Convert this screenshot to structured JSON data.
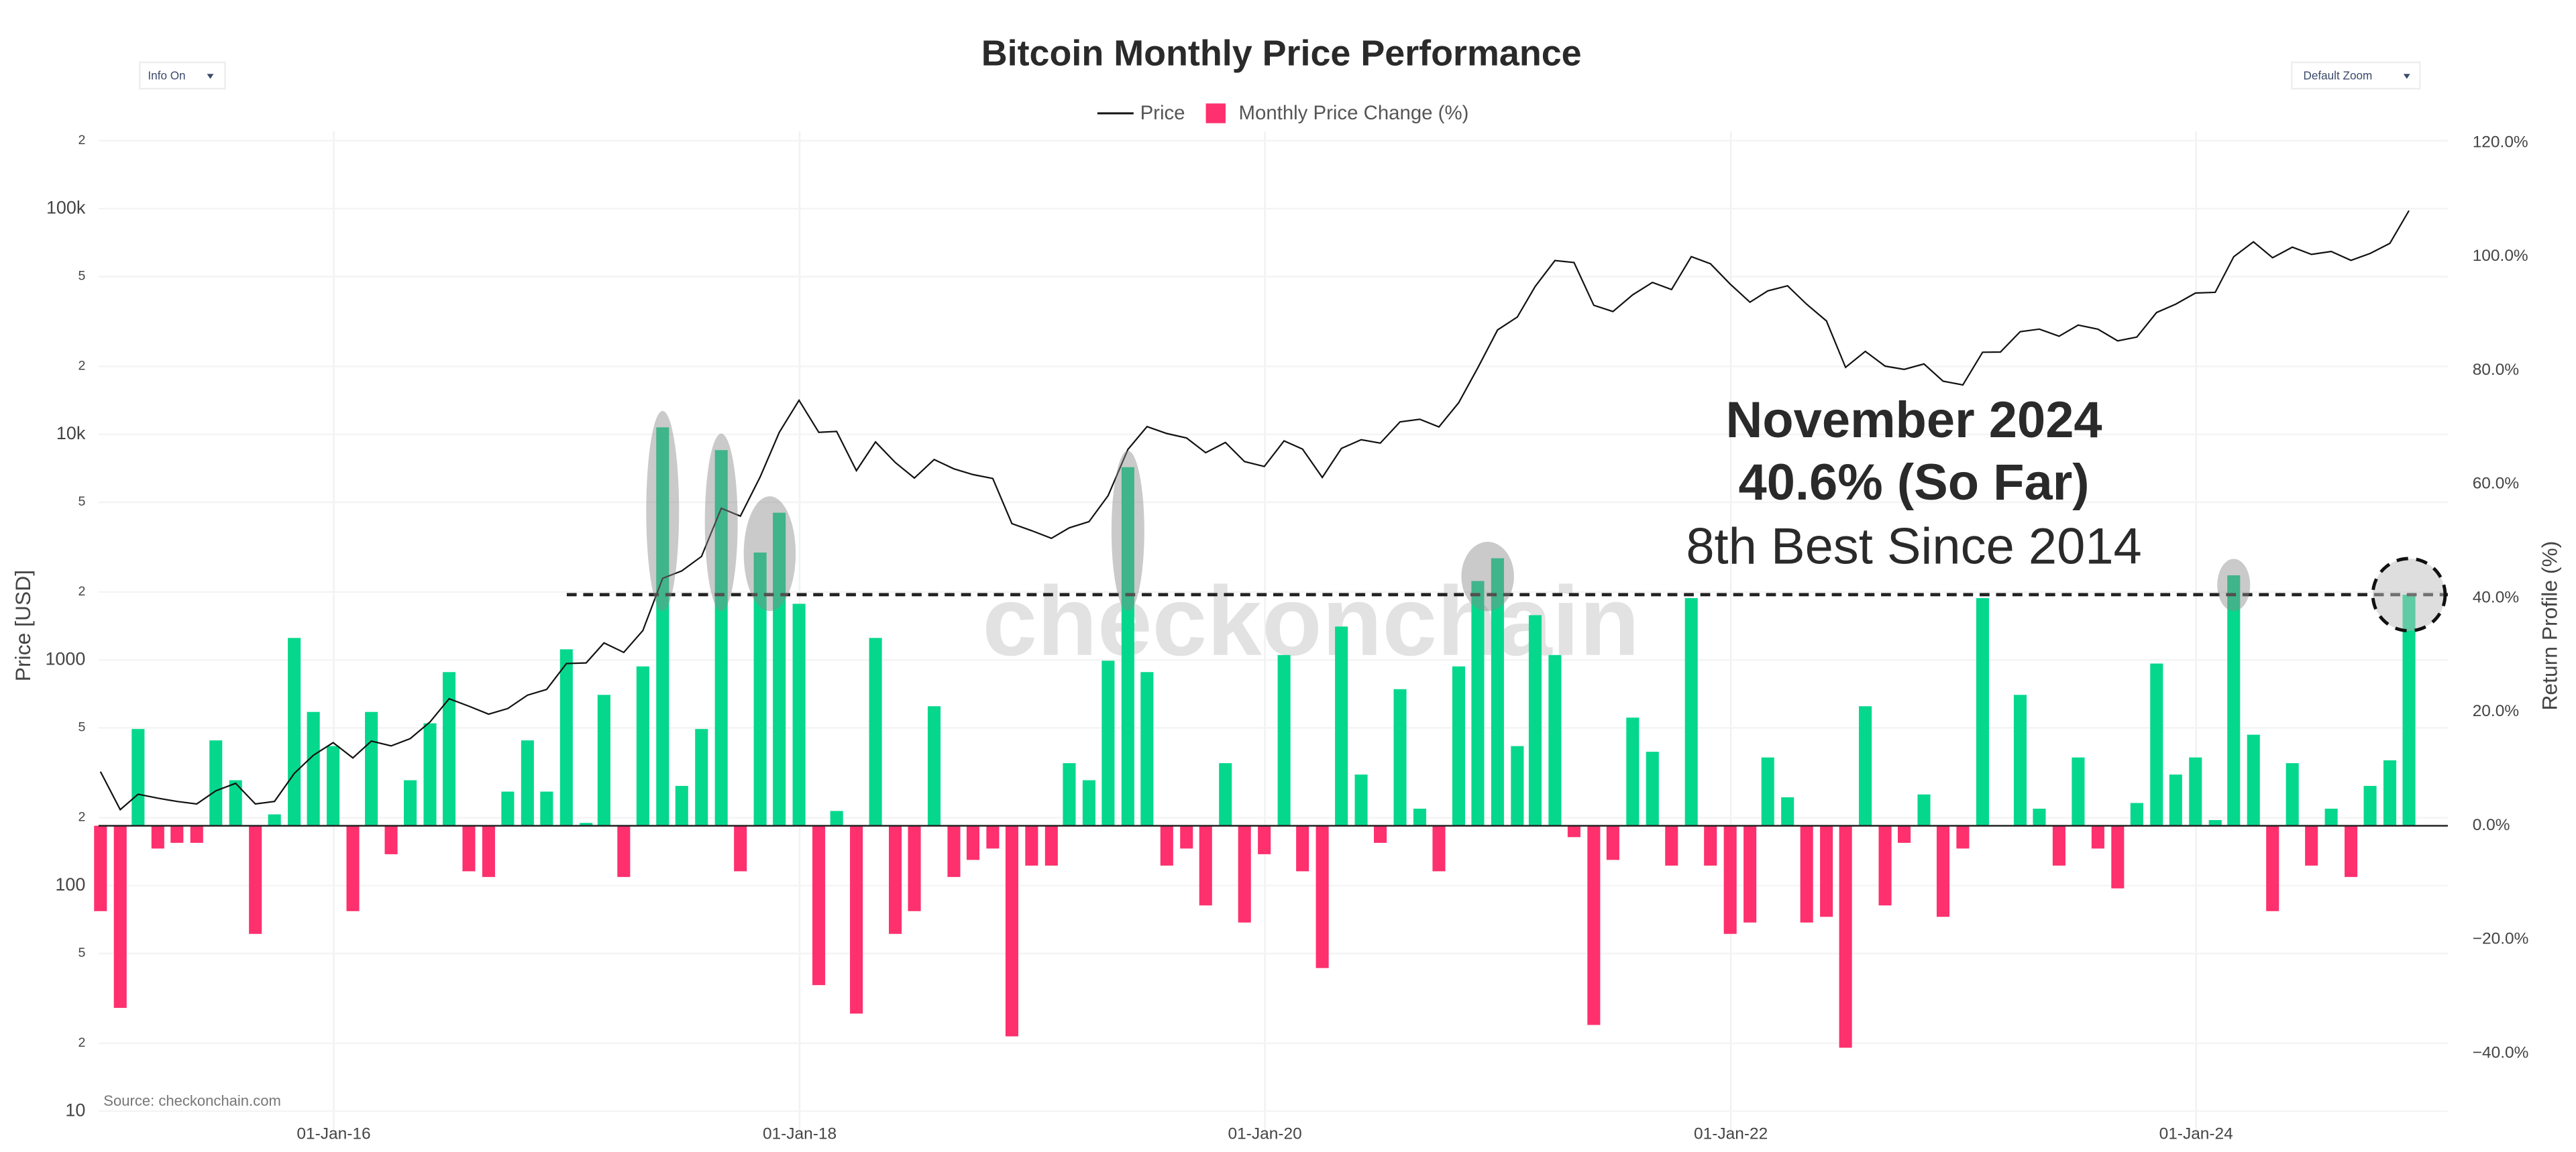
{
  "chart_data": {
    "type": "bar",
    "title": "Bitcoin Monthly Price Performance",
    "ylabel": "Price [USD]",
    "y2label": "Return Profile (%)",
    "annotations": [
      "November 2024",
      "40.6% (So Far)",
      "8th Best Since 2014"
    ],
    "watermark": "checkonchain",
    "source": "Source: checkonchain.com",
    "controls": [
      "Info On",
      "Default Zoom"
    ],
    "log_y": true,
    "grid": true,
    "xlim": [
      "2014-12-28",
      "2025-01-30"
    ],
    "xticks": [
      {
        "value": "2016-01-01",
        "label": "01-Jan-16"
      },
      {
        "value": "2018-01-01",
        "label": "01-Jan-18"
      },
      {
        "value": "2020-01-01",
        "label": "01-Jan-20"
      },
      {
        "value": "2022-01-01",
        "label": "01-Jan-22"
      },
      {
        "value": "2024-01-01",
        "label": "01-Jan-24"
      }
    ],
    "ylim": [
      8,
      220000
    ],
    "yticks": [
      10,
      {
        "value": 20,
        "label": "2"
      },
      {
        "value": 50,
        "label": "5"
      },
      100,
      {
        "value": 200,
        "label": "2"
      },
      {
        "value": 500,
        "label": "5"
      },
      1000,
      {
        "value": 2000,
        "label": "2"
      },
      {
        "value": 5000,
        "label": "5"
      },
      {
        "value": 10000,
        "label": "10k"
      },
      {
        "value": 20000,
        "label": "2"
      },
      {
        "value": 50000,
        "label": "5"
      },
      {
        "value": 100000,
        "label": "100k"
      },
      {
        "value": 200000,
        "label": "2"
      }
    ],
    "y2lim": [
      -54,
      122
    ],
    "y2ticks": [
      {
        "value": -40,
        "label": "−40.0%"
      },
      {
        "value": -20,
        "label": "−20.0%"
      },
      {
        "value": 0,
        "label": "0.0%"
      },
      {
        "value": 20,
        "label": "20.0%"
      },
      {
        "value": 40,
        "label": "40.0%"
      },
      {
        "value": 60,
        "label": "60.0%"
      },
      {
        "value": 80,
        "label": "80.0%"
      },
      {
        "value": 100,
        "label": "100.0%"
      },
      {
        "value": 120,
        "label": "120.0%"
      }
    ],
    "x": [
      "2014-12-31",
      "2015-01-31",
      "2015-02-28",
      "2015-03-31",
      "2015-04-30",
      "2015-05-31",
      "2015-06-30",
      "2015-07-31",
      "2015-08-31",
      "2015-09-30",
      "2015-10-31",
      "2015-11-30",
      "2015-12-31",
      "2016-01-31",
      "2016-02-29",
      "2016-03-31",
      "2016-04-30",
      "2016-05-31",
      "2016-06-30",
      "2016-07-31",
      "2016-08-31",
      "2016-09-30",
      "2016-10-31",
      "2016-11-30",
      "2016-12-31",
      "2017-01-31",
      "2017-02-28",
      "2017-03-31",
      "2017-04-30",
      "2017-05-31",
      "2017-06-30",
      "2017-07-31",
      "2017-08-31",
      "2017-09-30",
      "2017-10-31",
      "2017-11-30",
      "2017-12-31",
      "2018-01-31",
      "2018-02-28",
      "2018-03-31",
      "2018-04-30",
      "2018-05-31",
      "2018-06-30",
      "2018-07-31",
      "2018-08-31",
      "2018-09-30",
      "2018-10-31",
      "2018-11-30",
      "2018-12-31",
      "2019-01-31",
      "2019-02-28",
      "2019-03-31",
      "2019-04-30",
      "2019-05-31",
      "2019-06-30",
      "2019-07-31",
      "2019-08-31",
      "2019-09-30",
      "2019-10-31",
      "2019-11-30",
      "2019-12-31",
      "2020-01-31",
      "2020-02-29",
      "2020-03-31",
      "2020-04-30",
      "2020-05-31",
      "2020-06-30",
      "2020-07-31",
      "2020-08-31",
      "2020-09-30",
      "2020-10-31",
      "2020-11-30",
      "2020-12-31",
      "2021-01-31",
      "2021-02-28",
      "2021-03-31",
      "2021-04-30",
      "2021-05-31",
      "2021-06-30",
      "2021-07-31",
      "2021-08-31",
      "2021-09-30",
      "2021-10-31",
      "2021-11-30",
      "2021-12-31",
      "2022-01-31",
      "2022-02-28",
      "2022-03-31",
      "2022-04-30",
      "2022-05-31",
      "2022-06-30",
      "2022-07-31",
      "2022-08-31",
      "2022-09-30",
      "2022-10-31",
      "2022-11-30",
      "2022-12-31",
      "2023-01-31",
      "2023-02-28",
      "2023-03-31",
      "2023-04-30",
      "2023-05-31",
      "2023-06-30",
      "2023-07-31",
      "2023-08-31",
      "2023-09-30",
      "2023-10-31",
      "2023-11-30",
      "2023-12-31",
      "2024-01-31",
      "2024-02-29",
      "2024-03-31",
      "2024-04-30",
      "2024-05-31",
      "2024-06-30",
      "2024-07-31",
      "2024-08-31",
      "2024-09-30",
      "2024-10-31",
      "2024-11-30"
    ],
    "series": [
      {
        "name": "Price",
        "type": "line",
        "color": "#111111",
        "axis": "y",
        "values": [
          320,
          217,
          254,
          244,
          236,
          230,
          263,
          284,
          230,
          236,
          314,
          378,
          430,
          368,
          437,
          416,
          448,
          531,
          673,
          624,
          575,
          609,
          698,
          740,
          964,
          970,
          1190,
          1080,
          1350,
          2300,
          2480,
          2875,
          4700,
          4340,
          6470,
          10200,
          14150,
          10200,
          10300,
          6900,
          9250,
          7500,
          6400,
          7730,
          7030,
          6630,
          6370,
          4020,
          3740,
          3460,
          3850,
          4100,
          5350,
          8570,
          10820,
          10080,
          9630,
          8290,
          9200,
          7570,
          7200,
          9350,
          8600,
          6440,
          8660,
          9460,
          9140,
          11350,
          11660,
          10780,
          13800,
          19700,
          29000,
          33100,
          45200,
          58900,
          57700,
          37300,
          35000,
          41500,
          47100,
          43800,
          61300,
          57000,
          46300,
          38500,
          43200,
          45500,
          37700,
          31800,
          19800,
          23300,
          20050,
          19400,
          20500,
          17200,
          16550,
          23100,
          23150,
          28500,
          29250,
          27200,
          30480,
          29230,
          25940,
          26970,
          34650,
          37720,
          42270,
          42580,
          61200,
          71300,
          60600,
          67500,
          62700,
          64600,
          59000,
          63300,
          70200,
          98000
        ]
      },
      {
        "name": "Monthly Price Change (%)",
        "type": "bar",
        "color": "#05d88d",
        "negative_color": "#fe306e",
        "axis": "y2",
        "values": [
          -15,
          -32,
          17,
          -4,
          -3,
          -3,
          15,
          8,
          -19,
          2,
          33,
          20,
          14,
          -15,
          20,
          -5,
          8,
          18,
          27,
          -8,
          -9,
          6,
          15,
          6,
          31,
          0.5,
          23,
          -9,
          28,
          70,
          7,
          17,
          66,
          -8,
          48,
          55,
          39,
          -28,
          2.6,
          -33,
          33,
          -19,
          -15,
          21,
          -9,
          -6,
          -4,
          -37,
          -7,
          -7,
          11,
          8,
          29,
          63,
          27,
          -7,
          -4,
          -14,
          11,
          -17,
          -5,
          30,
          -8,
          -25,
          35,
          9,
          -3,
          24,
          3,
          -8,
          28,
          43,
          47,
          14,
          37,
          30,
          -2,
          -35,
          -6,
          19,
          13,
          -7,
          40,
          -7,
          -19,
          -17,
          12,
          5,
          -17,
          -16,
          -39,
          21,
          -14,
          -3,
          5.5,
          -16,
          -4,
          40,
          0.1,
          23,
          3,
          -7,
          12,
          -4,
          -11,
          4,
          28.5,
          9,
          12,
          1,
          44,
          16,
          -15,
          11,
          -7,
          3,
          -9,
          7,
          11.5,
          40.6
        ]
      }
    ]
  }
}
